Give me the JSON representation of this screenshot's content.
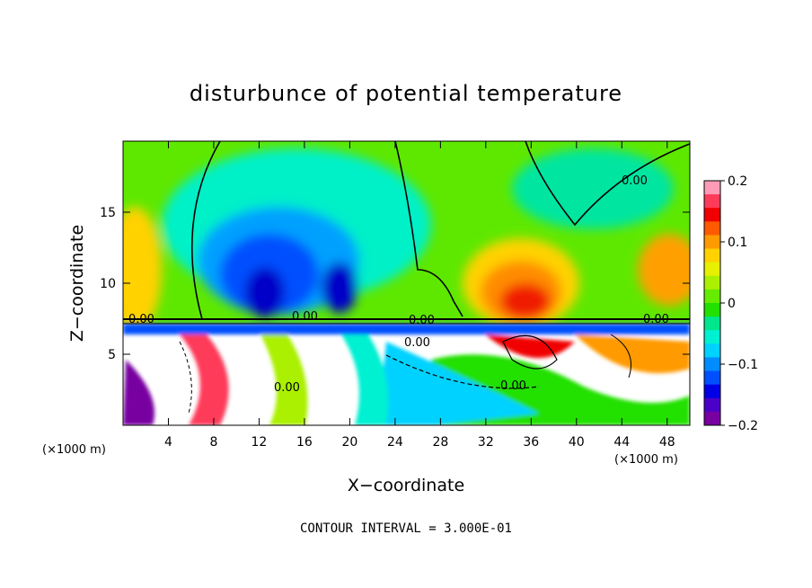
{
  "chart_data": {
    "type": "heatmap",
    "title": "disturbunce of potential temperature",
    "xlabel": "X−coordinate",
    "ylabel": "Z−coordinate",
    "x_unit": "(×1000 m)",
    "x_unit_right": "(×1000 m)",
    "xlim": [
      0,
      50
    ],
    "ylim": [
      0,
      20
    ],
    "x_ticks": [
      "4",
      "8",
      "12",
      "16",
      "20",
      "24",
      "28",
      "32",
      "36",
      "40",
      "44",
      "48"
    ],
    "x_tick_values": [
      4,
      8,
      12,
      16,
      20,
      24,
      28,
      32,
      36,
      40,
      44,
      48
    ],
    "y_ticks": [
      "5",
      "10",
      "15"
    ],
    "y_tick_values": [
      5,
      10,
      15
    ],
    "colorbar": {
      "range": [
        -0.2,
        0.2
      ],
      "tick_labels": [
        "0.2",
        "0.1",
        "0",
        "−0.1",
        "−0.2"
      ],
      "tick_values": [
        0.2,
        0.1,
        0,
        -0.1,
        -0.2
      ],
      "colors": [
        "#ff9bb4",
        "#ff3b5a",
        "#f00000",
        "#ff5a00",
        "#ff9a00",
        "#ffd200",
        "#e6f000",
        "#aaf000",
        "#66ec00",
        "#22e000",
        "#00e68c",
        "#00f0d2",
        "#00d2ff",
        "#008cff",
        "#0050ff",
        "#0000e6",
        "#4b00c8",
        "#7800a0"
      ]
    },
    "contour_labels": [
      "0.00",
      "0.00",
      "0.00",
      "0.00",
      "0.00",
      "0.00",
      "0.00",
      "0.00"
    ],
    "footer": "CONTOUR INTERVAL = 3.000E-01",
    "notes_regions": {
      "upper_background": "green (~0)",
      "cold_anomaly_center": [
        16,
        11
      ],
      "cold_anomaly_value": -0.2,
      "warm_anomaly_center": [
        35,
        9
      ],
      "warm_anomaly_value": 0.15,
      "inversion_height": 7.3
    }
  }
}
